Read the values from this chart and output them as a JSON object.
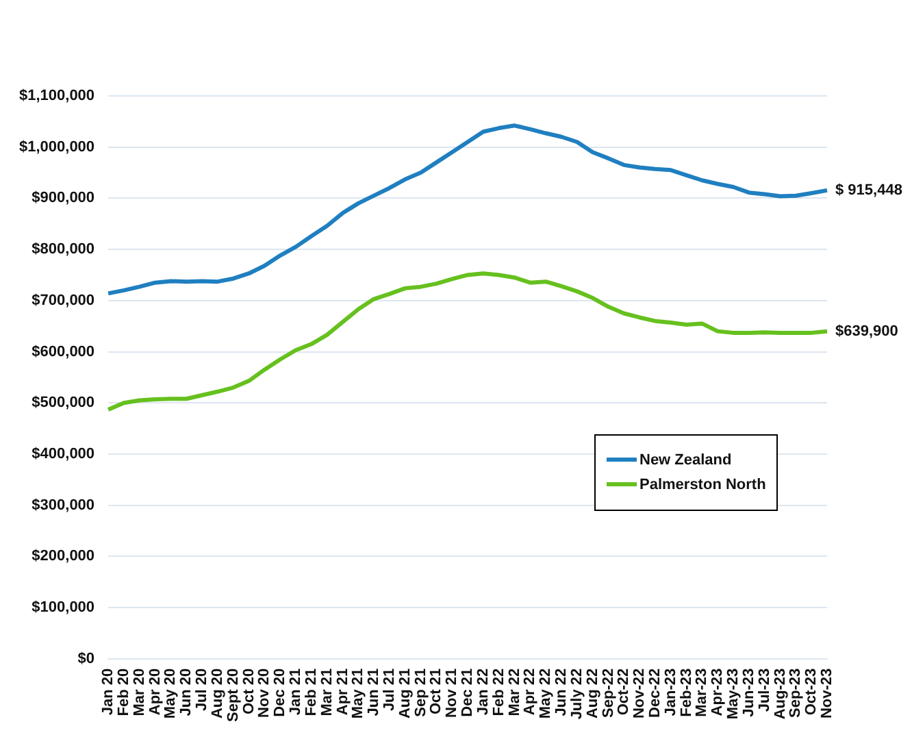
{
  "chart_data": {
    "type": "line",
    "categories": [
      "Jan 20",
      "Feb 20",
      "Mar 20",
      "Apr 20",
      "May 20",
      "Jun 20",
      "Jul 20",
      "Aug 20",
      "Sept 20",
      "Oct 20",
      "Nov 20",
      "Dec 20",
      "Jan 21",
      "Feb 21",
      "Mar 21",
      "Apr 21",
      "May 21",
      "Jun 21",
      "Jul 21",
      "Aug 21",
      "Sep 21",
      "Oct 21",
      "Nov 21",
      "Dec 21",
      "Jan 22",
      "Feb 22",
      "Mar 22",
      "Apr 22",
      "May 22",
      "Jun 22",
      "July 22",
      "Aug 22",
      "Sep-22",
      "Oct-22",
      "Nov-22",
      "Dec-22",
      "Jan-23",
      "Feb-23",
      "Mar-23",
      "Apr-23",
      "May-23",
      "Jun-23",
      "Jul-23",
      "Aug-23",
      "Sep-23",
      "Oct-23",
      "Nov-23"
    ],
    "series": [
      {
        "name": "New Zealand",
        "color": "#1f7fc0",
        "values": [
          714000,
          720000,
          727000,
          735000,
          738000,
          737000,
          738000,
          737000,
          743000,
          753000,
          768000,
          788000,
          805000,
          826000,
          846000,
          871000,
          890000,
          905000,
          920000,
          937000,
          950000,
          970000,
          990000,
          1010000,
          1030000,
          1037000,
          1042000,
          1035000,
          1027000,
          1020000,
          1010000,
          990000,
          978000,
          965000,
          960000,
          957000,
          955000,
          945000,
          935000,
          928000,
          922000,
          911000,
          908000,
          904000,
          905000,
          910000,
          915448
        ]
      },
      {
        "name": "Palmerston North",
        "color": "#66c01e",
        "values": [
          487000,
          500000,
          505000,
          507000,
          508000,
          508000,
          515000,
          522000,
          530000,
          543000,
          565000,
          585000,
          603000,
          615000,
          633000,
          658000,
          683000,
          703000,
          713000,
          724000,
          727000,
          733000,
          742000,
          750000,
          753000,
          750000,
          745000,
          735000,
          737000,
          728000,
          718000,
          705000,
          688000,
          675000,
          667000,
          660000,
          657000,
          653000,
          655000,
          640000,
          637000,
          637000,
          638000,
          637000,
          637000,
          637000,
          639900
        ]
      }
    ],
    "ylim": [
      0,
      1100000
    ],
    "yticks": [
      {
        "value": 0,
        "label": "$0"
      },
      {
        "value": 100000,
        "label": "$100,000"
      },
      {
        "value": 200000,
        "label": "$200,000"
      },
      {
        "value": 300000,
        "label": "$300,000"
      },
      {
        "value": 400000,
        "label": "$400,000"
      },
      {
        "value": 500000,
        "label": "$500,000"
      },
      {
        "value": 600000,
        "label": "$600,000"
      },
      {
        "value": 700000,
        "label": "$700,000"
      },
      {
        "value": 800000,
        "label": "$800,000"
      },
      {
        "value": 900000,
        "label": "$900,000"
      },
      {
        "value": 1000000,
        "label": "$1,000,000"
      },
      {
        "value": 1100000,
        "label": "$1,100,000"
      }
    ],
    "annotations": [
      {
        "text": "$ 915,448",
        "x": "Nov-23",
        "y": 915448
      },
      {
        "text": "$639,900",
        "x": "Nov-23",
        "y": 639900
      }
    ],
    "grid": "y",
    "legend": "right",
    "marker": "none",
    "line_style": "solid"
  }
}
